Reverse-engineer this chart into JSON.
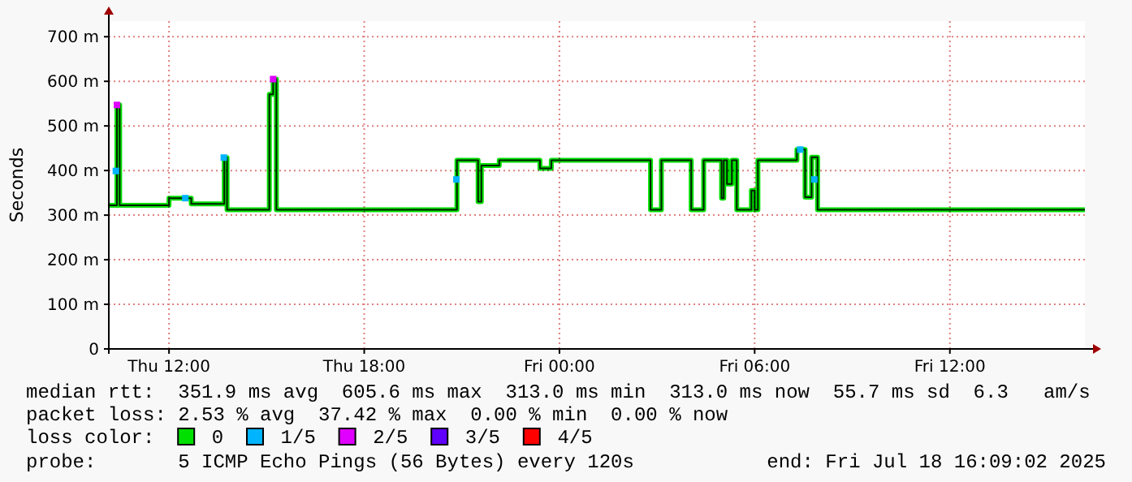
{
  "chart_data": {
    "type": "step",
    "ylabel": "Seconds",
    "xlim": [
      "2025-07-17T10:09",
      "2025-07-18T16:09"
    ],
    "xticks": [
      {
        "value": "2025-07-17T12:00",
        "label": "Thu 12:00"
      },
      {
        "value": "2025-07-17T18:00",
        "label": "Thu 18:00"
      },
      {
        "value": "2025-07-18T00:00",
        "label": "Fri 00:00"
      },
      {
        "value": "2025-07-18T06:00",
        "label": "Fri 06:00"
      },
      {
        "value": "2025-07-18T12:00",
        "label": "Fri 12:00"
      }
    ],
    "ylim": [
      0,
      735
    ],
    "yticks": [
      0,
      {
        "value": 100,
        "label": "100 m"
      },
      {
        "value": 200,
        "label": "200 m"
      },
      {
        "value": 300,
        "label": "300 m"
      },
      {
        "value": 400,
        "label": "400 m"
      },
      {
        "value": 500,
        "label": "500 m"
      },
      {
        "value": 600,
        "label": "600 m"
      },
      {
        "value": 700,
        "label": "700 m"
      }
    ],
    "grid": true,
    "legend": "bottom",
    "legend_title": "loss color:",
    "series": [
      {
        "name": "0",
        "color": "#00e000",
        "x": [
          "2025-07-17T10:09",
          "2025-07-17T10:23",
          "2025-07-17T10:24",
          "2025-07-17T10:29",
          "2025-07-17T11:57",
          "2025-07-17T12:00",
          "2025-07-17T12:36",
          "2025-07-17T12:41",
          "2025-07-17T13:41",
          "2025-07-17T13:42",
          "2025-07-17T13:47",
          "2025-07-17T15:03",
          "2025-07-17T15:05",
          "2025-07-17T15:12",
          "2025-07-17T15:18",
          "2025-07-17T20:45",
          "2025-07-17T20:51",
          "2025-07-17T21:27",
          "2025-07-17T21:30",
          "2025-07-17T21:36",
          "2025-07-17T22:03",
          "2025-07-17T22:09",
          "2025-07-17T23:21",
          "2025-07-17T23:24",
          "2025-07-17T23:42",
          "2025-07-17T23:45",
          "2025-07-18T02:44",
          "2025-07-18T02:48",
          "2025-07-18T03:03",
          "2025-07-18T03:08",
          "2025-07-18T04:00",
          "2025-07-18T04:03",
          "2025-07-18T04:21",
          "2025-07-18T04:26",
          "2025-07-18T04:56",
          "2025-07-18T04:59",
          "2025-07-18T05:03",
          "2025-07-18T05:09",
          "2025-07-18T05:18",
          "2025-07-18T05:27",
          "2025-07-18T05:54",
          "2025-07-18T06:00",
          "2025-07-18T06:06",
          "2025-07-18T07:12",
          "2025-07-18T07:18",
          "2025-07-18T07:30",
          "2025-07-18T07:33",
          "2025-07-18T07:45",
          "2025-07-18T07:56",
          "2025-07-18T16:09"
        ],
        "values": [
          322,
          322,
          547,
          322,
          322,
          338,
          338,
          325,
          325,
          429,
          312,
          312,
          571,
          605,
          312,
          312,
          423,
          423,
          330,
          411,
          411,
          423,
          423,
          405,
          405,
          423,
          423,
          312,
          312,
          423,
          423,
          312,
          312,
          423,
          423,
          338,
          423,
          370,
          423,
          312,
          355,
          312,
          423,
          423,
          447,
          447,
          340,
          430,
          312,
          312
        ]
      },
      {
        "name": "1/5",
        "color": "#00b4ff",
        "type": "scatter",
        "marker": "square",
        "x": [
          "2025-07-17T10:22",
          "2025-07-17T12:30",
          "2025-07-17T13:41",
          "2025-07-17T20:50",
          "2025-07-18T07:24",
          "2025-07-18T07:50"
        ],
        "values": [
          399,
          338,
          429,
          380,
          447,
          380
        ]
      },
      {
        "name": "2/5",
        "color": "#e000ff",
        "type": "scatter",
        "marker": "square",
        "x": [
          "2025-07-17T10:24",
          "2025-07-17T15:12"
        ],
        "values": [
          547,
          605
        ]
      },
      {
        "name": "3/5",
        "color": "#6000ff",
        "type": "scatter",
        "marker": "square"
      },
      {
        "name": "4/5",
        "color": "#ff0000",
        "type": "scatter",
        "marker": "square"
      }
    ],
    "annotations": [
      "median rtt:  351.9 ms avg  605.6 ms max  313.0 ms min  313.0 ms now  55.7 ms sd  6.3   am/s",
      "packet loss: 2.53 % avg  37.42 % max  0.00 % min  0.00 % now",
      "probe:       5 ICMP Echo Pings (56 Bytes) every 120s",
      "end: Fri Jul 18 16:09:02 2025"
    ]
  }
}
